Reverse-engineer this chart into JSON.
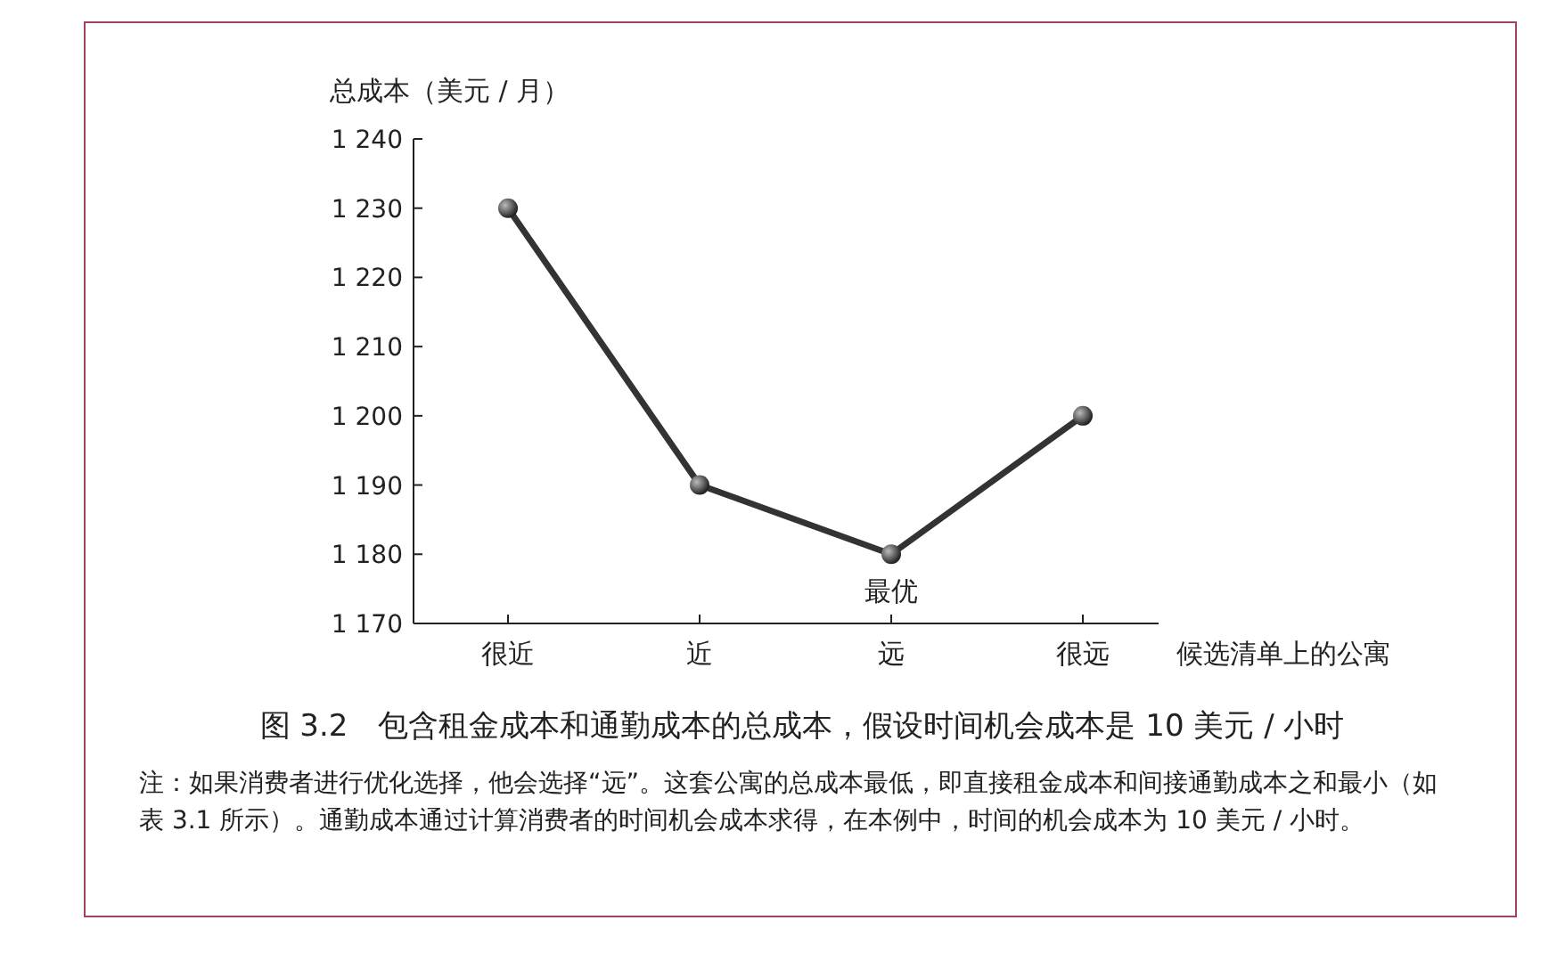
{
  "chart_data": {
    "type": "line",
    "title": "图 3.2　包含租金成本和通勤成本的总成本，假设时间机会成本是 10 美元 / 小时",
    "xlabel": "候选清单上的公寓",
    "ylabel": "总成本（美元 / 月）",
    "categories": [
      "很近",
      "近",
      "远",
      "很远"
    ],
    "series": [
      {
        "color": "#333333",
        "values": [
          1230,
          1190,
          1180,
          1200
        ]
      }
    ],
    "marker": "circle",
    "line_style": "solid",
    "ylim": [
      1170,
      1240
    ],
    "yticks": [
      {
        "value": 1170,
        "label": "1 170"
      },
      {
        "value": 1180,
        "label": "1 180"
      },
      {
        "value": 1190,
        "label": "1 190"
      },
      {
        "value": 1200,
        "label": "1 200"
      },
      {
        "value": 1210,
        "label": "1 210"
      },
      {
        "value": 1220,
        "label": "1 220"
      },
      {
        "value": 1230,
        "label": "1 230"
      },
      {
        "value": 1240,
        "label": "1 240"
      }
    ],
    "annotations": [
      {
        "text": "最优",
        "x": "远",
        "y": 1180
      },
      "注：如果消费者进行优化选择，他会选择“远”。这套公寓的总成本最低，即直接租金成本和间接通勤成本之和最小（如表 3.1 所示）。通勤成本通过计算消费者的时间机会成本求得，在本例中，时间的机会成本为 10 美元 / 小时。"
    ]
  }
}
